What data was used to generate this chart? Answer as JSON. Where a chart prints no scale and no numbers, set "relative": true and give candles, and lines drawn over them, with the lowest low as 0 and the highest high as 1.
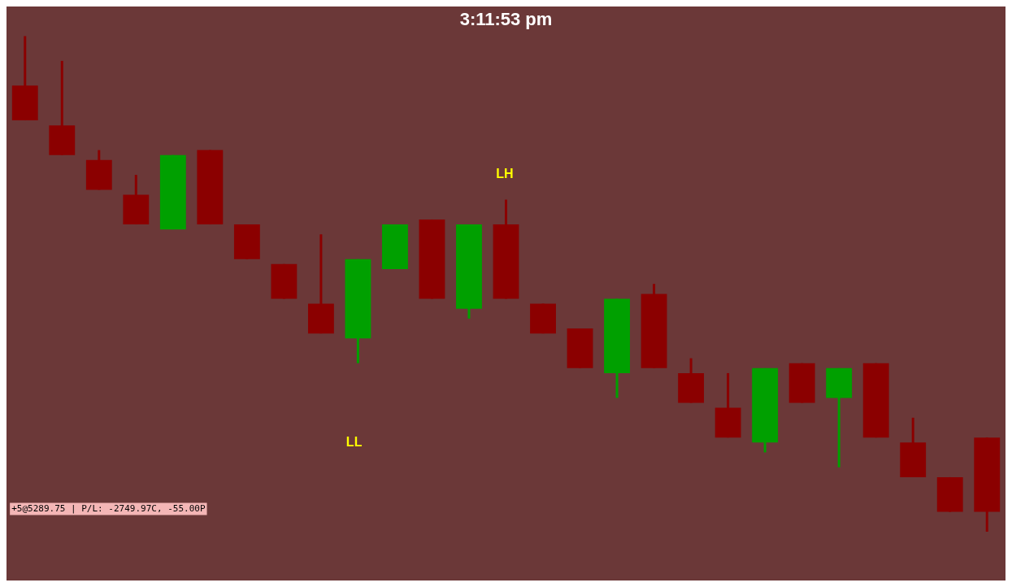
{
  "chart_data": {
    "type": "candlestick",
    "relative": true,
    "title": "3:11:53 pm",
    "categories": [
      null,
      null,
      null,
      null,
      null,
      null,
      null,
      null,
      null,
      null,
      null,
      null,
      null,
      null,
      null,
      null,
      null,
      null,
      null,
      null,
      null,
      null,
      null,
      null,
      null,
      null,
      null
    ],
    "ohlc": [
      [
        0.9,
        1,
        0.83,
        0.83
      ],
      [
        0.82,
        0.95,
        0.76,
        0.76
      ],
      [
        0.75,
        0.77,
        0.69,
        0.69
      ],
      [
        0.68,
        0.72,
        0.62,
        0.62
      ],
      [
        0.61,
        0.76,
        0.61,
        0.76
      ],
      [
        0.77,
        0.77,
        0.62,
        0.62
      ],
      [
        0.62,
        0.62,
        0.55,
        0.55
      ],
      [
        0.54,
        0.54,
        0.47,
        0.47
      ],
      [
        0.46,
        0.6,
        0.4,
        0.4
      ],
      [
        0.39,
        0.55,
        0.34,
        0.55
      ],
      [
        0.53,
        0.62,
        0.53,
        0.62
      ],
      [
        0.63,
        0.63,
        0.47,
        0.47
      ],
      [
        0.45,
        0.62,
        0.43,
        0.62
      ],
      [
        0.62,
        0.67,
        0.47,
        0.47
      ],
      [
        0.46,
        0.46,
        0.4,
        0.4
      ],
      [
        0.41,
        0.41,
        0.33,
        0.33
      ],
      [
        0.32,
        0.47,
        0.27,
        0.47
      ],
      [
        0.48,
        0.5,
        0.33,
        0.33
      ],
      [
        0.32,
        0.35,
        0.26,
        0.26
      ],
      [
        0.25,
        0.32,
        0.19,
        0.19
      ],
      [
        0.18,
        0.33,
        0.16,
        0.33
      ],
      [
        0.34,
        0.34,
        0.26,
        0.26
      ],
      [
        0.27,
        0.33,
        0.13,
        0.33
      ],
      [
        0.34,
        0.34,
        0.19,
        0.19
      ],
      [
        0.18,
        0.23,
        0.11,
        0.11
      ],
      [
        0.11,
        0.11,
        0.04,
        0.04
      ],
      [
        0.19,
        0.19,
        0,
        0.04
      ]
    ],
    "colors": [
      "#8b0000",
      "#8b0000",
      "#8b0000",
      "#8b0000",
      "#00a000",
      "#8b0000",
      "#8b0000",
      "#8b0000",
      "#8b0000",
      "#00a000",
      "#00a000",
      "#8b0000",
      "#00a000",
      "#8b0000",
      "#8b0000",
      "#8b0000",
      "#00a000",
      "#8b0000",
      "#8b0000",
      "#8b0000",
      "#00a000",
      "#8b0000",
      "#00a000",
      "#8b0000",
      "#8b0000",
      "#8b0000",
      "#8b0000"
    ],
    "annotations": [
      "LH",
      "LL",
      "+5@5289.75 | P/L: -2749.97C, -55.00P"
    ],
    "legend": false
  }
}
